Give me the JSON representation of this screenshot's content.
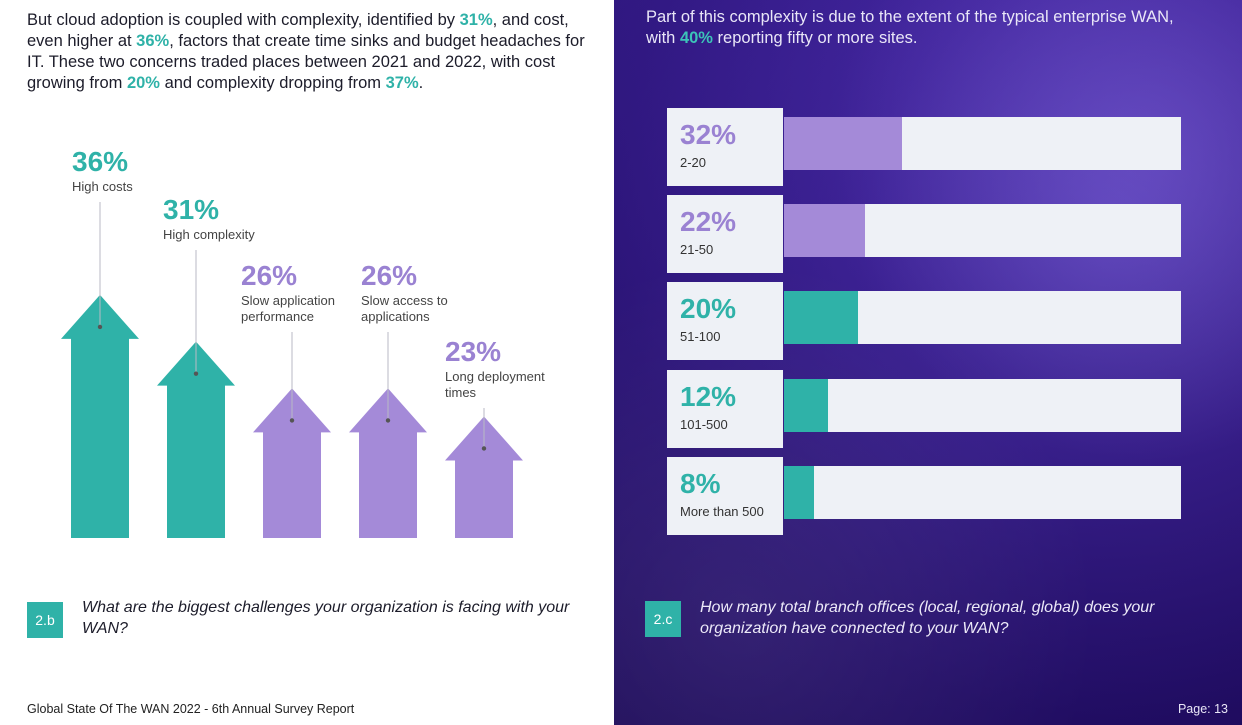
{
  "left": {
    "intro_parts": [
      {
        "t": "But cloud adoption is coupled with complexity, identified by ",
        "hl": false
      },
      {
        "t": "31%",
        "hl": true
      },
      {
        "t": ", and cost, even higher at ",
        "hl": false
      },
      {
        "t": "36%",
        "hl": true
      },
      {
        "t": ", factors that create time sinks and budget headaches for IT. These two concerns traded places between 2021 and 2022, with cost growing from ",
        "hl": false
      },
      {
        "t": "20%",
        "hl": true
      },
      {
        "t": " and complexity dropping from ",
        "hl": false
      },
      {
        "t": "37%",
        "hl": true
      },
      {
        "t": ".",
        "hl": false
      }
    ],
    "question_number": "2.b",
    "question": "What are the biggest challenges your organization is facing with your WAN?",
    "footer": "Global State Of The WAN 2022 - 6th Annual Survey Report"
  },
  "right": {
    "intro_parts": [
      {
        "t": "Part of this complexity is due to the extent of the typical enterprise WAN, with ",
        "hl": false
      },
      {
        "t": "40%",
        "hl": true
      },
      {
        "t": " reporting fifty or more sites.",
        "hl": false
      }
    ],
    "question_number": "2.c",
    "question": "How many total branch offices (local, regional, global) does your organization have connected to your WAN?",
    "page": "Page: 13"
  },
  "colors": {
    "teal": "#2fb2a8",
    "purple": "#a48ad8",
    "track": "#eef1f6",
    "label_teal": "#2fb2a8",
    "label_purple": "#9a82d2"
  },
  "chart_data": [
    {
      "type": "bar",
      "orientation": "vertical-arrows",
      "categories": [
        "High costs",
        "High complexity",
        "Slow application performance",
        "Slow access to applications",
        "Long deployment times"
      ],
      "values": [
        36,
        31,
        26,
        26,
        23
      ],
      "value_labels": [
        "36%",
        "31%",
        "26%",
        "26%",
        "23%"
      ],
      "category_labels": [
        [
          "High costs"
        ],
        [
          "High complexity"
        ],
        [
          "Slow application",
          "performance"
        ],
        [
          "Slow access to",
          "applications"
        ],
        [
          "Long deployment",
          "times"
        ]
      ],
      "bar_colors": [
        "teal",
        "teal",
        "purple",
        "purple",
        "purple"
      ],
      "unit": "%"
    },
    {
      "type": "bar",
      "orientation": "horizontal",
      "categories": [
        "2-20",
        "21-50",
        "51-100",
        "101-500",
        "More than 500"
      ],
      "values": [
        32,
        22,
        20,
        12,
        8
      ],
      "value_labels": [
        "32%",
        "22%",
        "20%",
        "12%",
        "8%"
      ],
      "bar_colors": [
        "purple",
        "purple",
        "teal",
        "teal",
        "teal"
      ],
      "xlim": [
        0,
        100
      ],
      "unit": "%"
    }
  ]
}
